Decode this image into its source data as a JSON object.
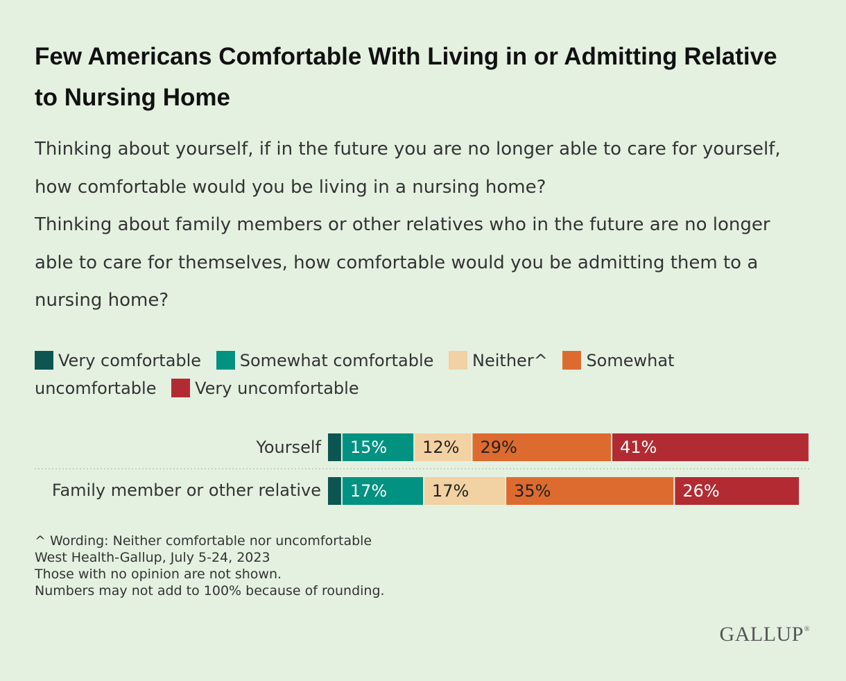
{
  "title": "Few Americans Comfortable With Living in or Admitting Relative to Nursing Home",
  "subtitle_lines": [
    "Thinking about yourself, if in the future you are no longer able to care for yourself, how comfortable would you be living in a nursing home?",
    "Thinking about family members or other relatives who in the future are no longer able to care for themselves, how comfortable would you be admitting them to a nursing home?"
  ],
  "chart_data": {
    "type": "bar",
    "orientation": "horizontal",
    "stacked": true,
    "categories": [
      "Yourself",
      "Family member or other relative"
    ],
    "series": [
      {
        "name": "Very comfortable",
        "values": [
          3,
          3
        ],
        "color": "#0c5551",
        "labels": [
          "",
          ""
        ],
        "label_color": "#ffffff"
      },
      {
        "name": "Somewhat comfortable",
        "values": [
          15,
          17
        ],
        "color": "#019282",
        "labels": [
          "15%",
          "17%"
        ],
        "label_color": "#ffffff"
      },
      {
        "name": "Neither^",
        "values": [
          12,
          17
        ],
        "color": "#f2d1a2",
        "labels": [
          "12%",
          "17%"
        ],
        "label_color": "#222222"
      },
      {
        "name": "Somewhat uncomfortable",
        "values": [
          29,
          35
        ],
        "color": "#dd6b2f",
        "labels": [
          "29%",
          "35%"
        ],
        "label_color": "#222222"
      },
      {
        "name": "Very uncomfortable",
        "values": [
          41,
          26
        ],
        "color": "#b22b33",
        "labels": [
          "41%",
          "26%"
        ],
        "label_color": "#ffffff"
      }
    ],
    "xlim": [
      0,
      100
    ],
    "legend_position": "top",
    "grid": false
  },
  "notes": [
    "^ Wording: Neither comfortable nor uncomfortable",
    "West Health-Gallup, July 5-24, 2023",
    "Those with no opinion are not shown.",
    "Numbers may not add to 100% because of rounding."
  ],
  "logo": "GALLUP",
  "logo_mark": "®",
  "colors": {
    "background": "#e4f1e1",
    "separator": "#b9c7b7"
  }
}
